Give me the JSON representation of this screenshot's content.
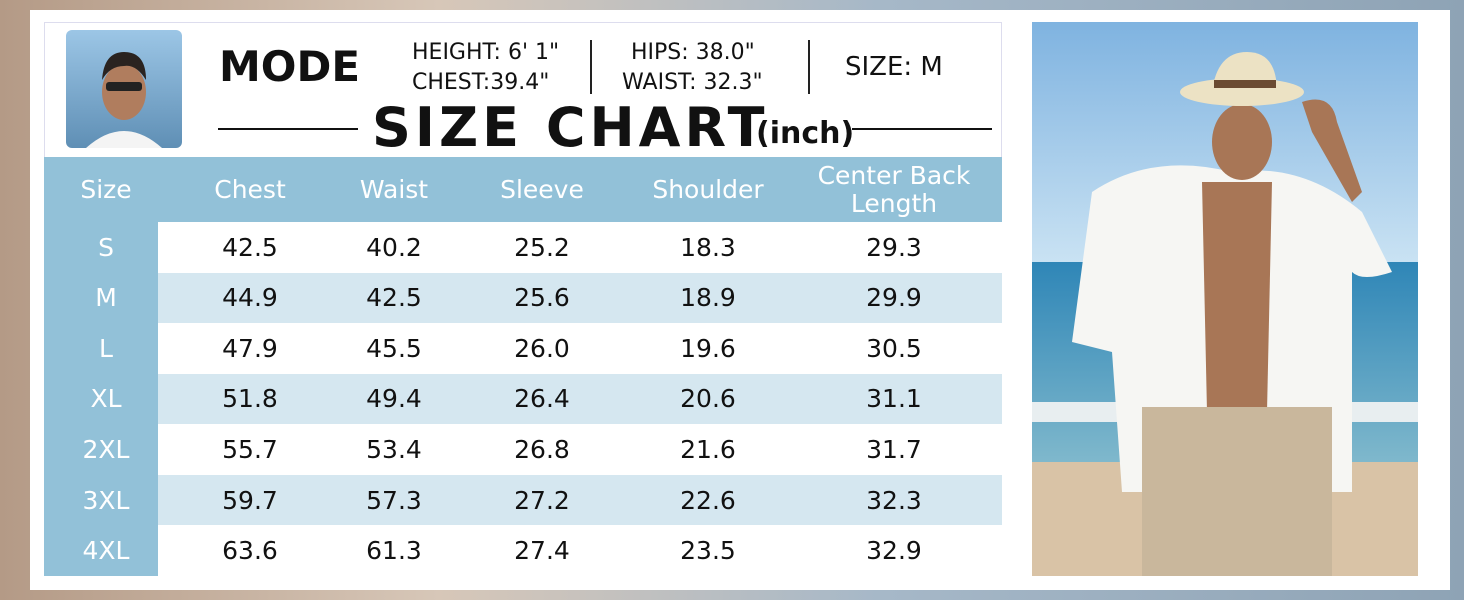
{
  "header": {
    "model_label": "MODE",
    "height": "HEIGHT: 6' 1\"",
    "chest": "CHEST:39.4\"",
    "hips": "HIPS: 38.0\"",
    "waist": "WAIST: 32.3\"",
    "size": "SIZE: M",
    "title": "SIZE CHART",
    "unit": "(inch)"
  },
  "table": {
    "columns": [
      "Size",
      "Chest",
      "Waist",
      "Sleeve",
      "Shoulder",
      "Center Back Length"
    ],
    "rows": [
      [
        "S",
        "42.5",
        "40.2",
        "25.2",
        "18.3",
        "29.3"
      ],
      [
        "M",
        "44.9",
        "42.5",
        "25.6",
        "18.9",
        "29.9"
      ],
      [
        "L",
        "47.9",
        "45.5",
        "26.0",
        "19.6",
        "30.5"
      ],
      [
        "XL",
        "51.8",
        "49.4",
        "26.4",
        "20.6",
        "31.1"
      ],
      [
        "2XL",
        "55.7",
        "53.4",
        "26.8",
        "21.6",
        "31.7"
      ],
      [
        "3XL",
        "59.7",
        "57.3",
        "27.2",
        "22.6",
        "32.3"
      ],
      [
        "4XL",
        "63.6",
        "61.3",
        "27.4",
        "23.5",
        "32.9"
      ]
    ]
  }
}
